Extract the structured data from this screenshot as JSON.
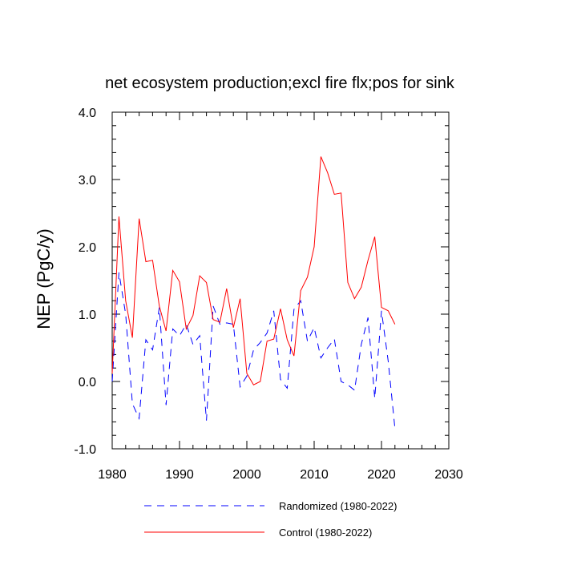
{
  "chart_data": {
    "type": "line",
    "title": "net ecosystem production;excl fire flx;pos for sink",
    "xlabel": "",
    "ylabel": "NEP  (PgC/y)",
    "xlim": [
      1980,
      2030
    ],
    "ylim": [
      -1.0,
      4.0
    ],
    "xticks": [
      1980,
      1990,
      2000,
      2010,
      2020,
      2030
    ],
    "xtick_labels": [
      "1980",
      "1990",
      "2000",
      "2010",
      "2020",
      "2030"
    ],
    "yticks": [
      -1.0,
      0.0,
      1.0,
      2.0,
      3.0,
      4.0
    ],
    "ytick_labels": [
      "-1.0",
      "0.0",
      "1.0",
      "2.0",
      "3.0",
      "4.0"
    ],
    "x": [
      1980,
      1981,
      1982,
      1983,
      1984,
      1985,
      1986,
      1987,
      1988,
      1989,
      1990,
      1991,
      1992,
      1993,
      1994,
      1995,
      1996,
      1997,
      1998,
      1999,
      2000,
      2001,
      2002,
      2003,
      2004,
      2005,
      2006,
      2007,
      2008,
      2009,
      2010,
      2011,
      2012,
      2013,
      2014,
      2015,
      2016,
      2017,
      2018,
      2019,
      2020,
      2021,
      2022
    ],
    "series": [
      {
        "name": "Randomized (1980-2022)",
        "color": "#0000ff",
        "style": "dashed",
        "values": [
          0.0,
          1.62,
          1.0,
          -0.33,
          -0.55,
          0.62,
          0.47,
          1.1,
          -0.35,
          0.78,
          0.68,
          0.85,
          0.55,
          0.68,
          -0.58,
          1.12,
          0.85,
          0.87,
          0.85,
          -0.08,
          0.08,
          0.47,
          0.58,
          0.72,
          1.05,
          0.03,
          -0.1,
          1.07,
          1.2,
          0.6,
          0.8,
          0.35,
          0.5,
          0.63,
          0.0,
          -0.05,
          -0.13,
          0.55,
          0.95,
          -0.25,
          1.05,
          0.3,
          -0.7
        ]
      },
      {
        "name": "Control (1980-2022)",
        "color": "#ff0000",
        "style": "solid",
        "values": [
          0.12,
          2.45,
          1.2,
          0.65,
          2.42,
          1.78,
          1.8,
          1.12,
          0.75,
          1.65,
          1.48,
          0.78,
          0.98,
          1.57,
          1.47,
          0.92,
          0.88,
          1.38,
          0.8,
          1.23,
          0.12,
          -0.05,
          0.0,
          0.6,
          0.63,
          1.08,
          0.62,
          0.38,
          1.35,
          1.55,
          2.0,
          3.34,
          3.1,
          2.78,
          2.8,
          1.47,
          1.23,
          1.4,
          1.8,
          2.15,
          1.1,
          1.05,
          0.85
        ]
      }
    ],
    "legend_position": "bottom",
    "grid": false
  }
}
